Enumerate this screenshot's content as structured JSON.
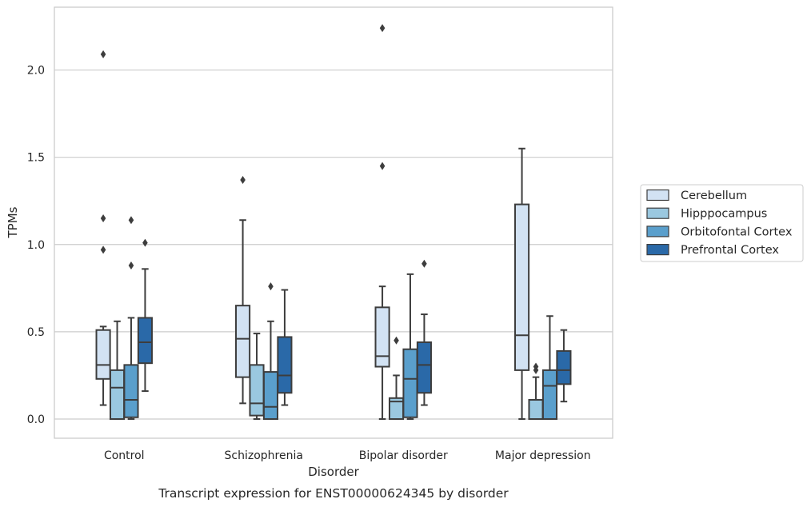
{
  "chart_data": {
    "type": "boxplot",
    "caption": "Transcript expression for ENST00000624345 by disorder",
    "xlabel": "Disorder",
    "ylabel": "TPMs",
    "ylim": [
      -0.11,
      2.36
    ],
    "yticks": [
      0.0,
      0.5,
      1.0,
      1.5,
      2.0
    ],
    "ytick_labels": [
      "0.0",
      "0.5",
      "1.0",
      "1.5",
      "2.0"
    ],
    "grid": "horizontal",
    "legend_position": "right",
    "categories": [
      "Control",
      "Schizophrenia",
      "Bipolar disorder",
      "Major depression"
    ],
    "series": [
      {
        "name": "Cerebellum",
        "color": "#d2e2f3",
        "boxes": [
          {
            "whislo": 0.08,
            "q1": 0.23,
            "med": 0.31,
            "q3": 0.51,
            "whishi": 0.53,
            "fliers": [
              0.97,
              1.15,
              2.09
            ]
          },
          {
            "whislo": 0.09,
            "q1": 0.24,
            "med": 0.46,
            "q3": 0.65,
            "whishi": 1.14,
            "fliers": [
              1.37
            ]
          },
          {
            "whislo": 0.0,
            "q1": 0.3,
            "med": 0.36,
            "q3": 0.64,
            "whishi": 0.76,
            "fliers": [
              1.45,
              2.24
            ]
          },
          {
            "whislo": 0.0,
            "q1": 0.28,
            "med": 0.48,
            "q3": 1.23,
            "whishi": 1.55,
            "fliers": []
          }
        ]
      },
      {
        "name": "Hipppocampus",
        "color": "#9ac8e0",
        "boxes": [
          {
            "whislo": 0.0,
            "q1": 0.0,
            "med": 0.18,
            "q3": 0.28,
            "whishi": 0.56,
            "fliers": []
          },
          {
            "whislo": 0.0,
            "q1": 0.02,
            "med": 0.09,
            "q3": 0.31,
            "whishi": 0.49,
            "fliers": []
          },
          {
            "whislo": 0.0,
            "q1": 0.0,
            "med": 0.1,
            "q3": 0.12,
            "whishi": 0.25,
            "fliers": [
              0.45
            ]
          },
          {
            "whislo": 0.0,
            "q1": 0.0,
            "med": 0.0,
            "q3": 0.11,
            "whishi": 0.24,
            "fliers": [
              0.28,
              0.3
            ]
          }
        ]
      },
      {
        "name": "Orbitofontal Cortex",
        "color": "#5a9fcc",
        "boxes": [
          {
            "whislo": 0.0,
            "q1": 0.01,
            "med": 0.11,
            "q3": 0.31,
            "whishi": 0.58,
            "fliers": [
              0.88,
              1.14
            ]
          },
          {
            "whislo": 0.0,
            "q1": 0.0,
            "med": 0.07,
            "q3": 0.27,
            "whishi": 0.56,
            "fliers": [
              0.76
            ]
          },
          {
            "whislo": 0.0,
            "q1": 0.01,
            "med": 0.23,
            "q3": 0.4,
            "whishi": 0.83,
            "fliers": []
          },
          {
            "whislo": 0.0,
            "q1": 0.0,
            "med": 0.19,
            "q3": 0.28,
            "whishi": 0.59,
            "fliers": []
          }
        ]
      },
      {
        "name": "Prefrontal Cortex",
        "color": "#2a69a8",
        "boxes": [
          {
            "whislo": 0.16,
            "q1": 0.32,
            "med": 0.44,
            "q3": 0.58,
            "whishi": 0.86,
            "fliers": [
              1.01
            ]
          },
          {
            "whislo": 0.08,
            "q1": 0.15,
            "med": 0.25,
            "q3": 0.47,
            "whishi": 0.74,
            "fliers": []
          },
          {
            "whislo": 0.08,
            "q1": 0.15,
            "med": 0.31,
            "q3": 0.44,
            "whishi": 0.6,
            "fliers": [
              0.89
            ]
          },
          {
            "whislo": 0.1,
            "q1": 0.2,
            "med": 0.28,
            "q3": 0.39,
            "whishi": 0.51,
            "fliers": []
          }
        ]
      }
    ]
  }
}
